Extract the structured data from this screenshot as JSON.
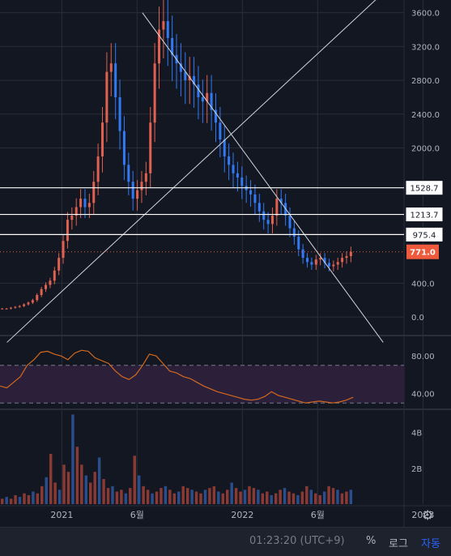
{
  "colors": {
    "background": "#131722",
    "grid": "#2a2e39",
    "up": "#e0614f",
    "down": "#3179f5",
    "axis_text": "#b2b5be",
    "trendline": "#d1d4dc",
    "rsi_line": "#d2691e",
    "rsi_band": "#2b1f3a",
    "last_price_tag": "#f05a3c"
  },
  "footer": {
    "time": "01:23:20 (UTC+9)",
    "percent": "%",
    "log": "로그",
    "auto": "자동",
    "settings_icon": "gear-icon"
  },
  "chart_data": [
    {
      "type": "candlestick",
      "pane": "price",
      "x_tick_labels": [
        "2021",
        "6월",
        "2022",
        "6월",
        "2023"
      ],
      "y_tick_labels": [
        "0.0",
        "400.0",
        "2000.0",
        "2400.0",
        "2800.0",
        "3200.0",
        "3600.0"
      ],
      "ylim": [
        -200,
        3750
      ],
      "x_range_months": [
        "2020-09",
        "2023-02"
      ],
      "horizontal_levels": [
        1528.7,
        1213.7,
        975.4
      ],
      "last_price": 771.0,
      "price_labels": [
        "1528.7",
        "1213.7",
        "975.4",
        "771.0"
      ],
      "trendlines": [
        {
          "from": [
            "2020-10",
            -300
          ],
          "to": [
            "2022-12",
            4000
          ]
        },
        {
          "from": [
            "2021-07",
            3600
          ],
          "to": [
            "2022-11",
            -300
          ]
        }
      ],
      "weekly_close_approx": [
        100,
        100,
        110,
        120,
        130,
        150,
        170,
        200,
        260,
        330,
        380,
        430,
        550,
        700,
        900,
        1150,
        1200,
        1300,
        1400,
        1300,
        1350,
        1600,
        1900,
        2300,
        2900,
        3000,
        2600,
        2200,
        1800,
        1600,
        1400,
        1500,
        1600,
        1700,
        2300,
        3000,
        3400,
        3500,
        3300,
        3100,
        3000,
        2900,
        2800,
        2850,
        2750,
        2600,
        2550,
        2650,
        2450,
        2300,
        2100,
        1900,
        1800,
        1700,
        1650,
        1550,
        1500,
        1450,
        1350,
        1250,
        1150,
        1100,
        1200,
        1400,
        1350,
        1200,
        1050,
        950,
        800,
        700,
        650,
        620,
        680,
        700,
        640,
        600,
        620,
        650,
        700,
        720,
        771
      ],
      "grid": true
    },
    {
      "type": "line",
      "pane": "rsi",
      "y_tick_labels": [
        "80.00",
        "40.00"
      ],
      "ylim": [
        25,
        100
      ],
      "band": [
        30,
        70
      ],
      "series": [
        {
          "values": [
            48,
            46,
            52,
            58,
            70,
            76,
            84,
            85,
            82,
            80,
            76,
            83,
            86,
            85,
            78,
            75,
            72,
            64,
            58,
            55,
            60,
            70,
            82,
            80,
            72,
            64,
            62,
            58,
            56,
            52,
            48,
            45,
            42,
            40,
            38,
            36,
            34,
            33,
            34,
            37,
            42,
            38,
            36,
            34,
            32,
            30,
            31,
            32,
            31,
            30,
            31,
            33,
            36
          ]
        }
      ],
      "grid": true
    },
    {
      "type": "bar",
      "pane": "volume",
      "y_tick_labels": [
        "4B",
        "2B"
      ],
      "ylim": [
        0,
        5200000000
      ],
      "series": [
        {
          "values": [
            0.3,
            0.4,
            0.3,
            0.5,
            0.4,
            0.6,
            0.5,
            0.7,
            0.6,
            1.0,
            1.5,
            2.8,
            1.2,
            0.8,
            2.2,
            1.8,
            5.0,
            3.2,
            2.2,
            1.6,
            1.2,
            1.8,
            2.6,
            1.4,
            0.9,
            1.0,
            0.7,
            0.8,
            0.6,
            0.9,
            2.7,
            1.6,
            1.0,
            0.8,
            0.6,
            0.7,
            0.9,
            1.0,
            0.8,
            0.6,
            0.7,
            1.0,
            0.9,
            0.8,
            0.7,
            0.6,
            0.8,
            0.9,
            1.0,
            0.7,
            0.6,
            0.8,
            1.2,
            0.9,
            0.7,
            0.8,
            1.0,
            0.9,
            0.8,
            0.6,
            0.7,
            0.5,
            0.6,
            0.8,
            0.9,
            0.7,
            0.6,
            0.5,
            0.7,
            1.0,
            0.8,
            0.6,
            0.5,
            0.7,
            1.0,
            0.9,
            0.8,
            0.6,
            0.7,
            0.8
          ]
        }
      ],
      "grid": true
    }
  ]
}
